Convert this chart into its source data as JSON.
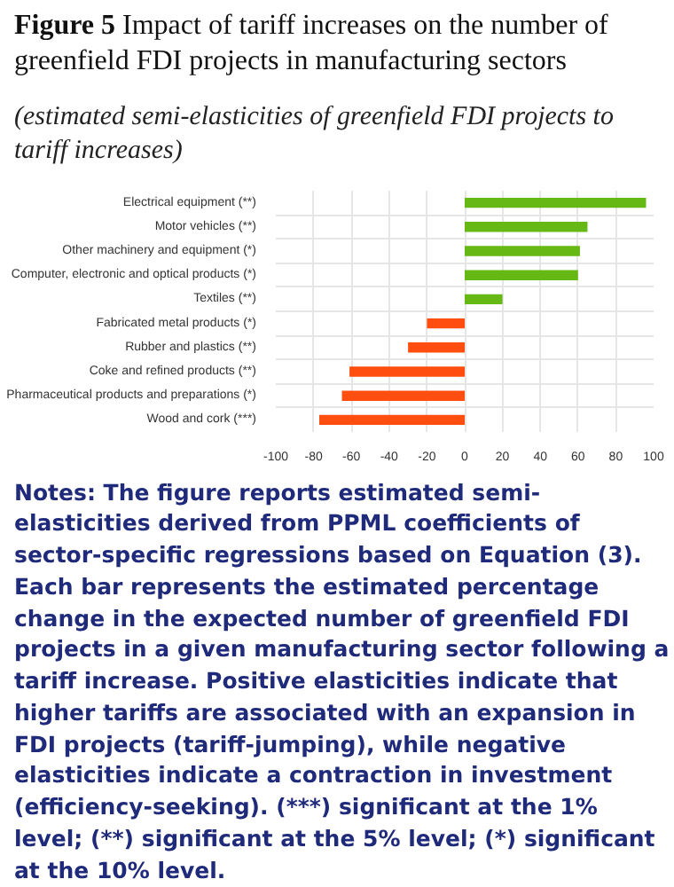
{
  "chart_data": {
    "type": "bar",
    "orientation": "horizontal",
    "title": "Figure 5 Impact of tariff increases on the number of greenfield FDI projects in manufacturing sectors",
    "subtitle": "(estimated semi-elasticities of greenfield FDI projects to tariff increases)",
    "categories": [
      "Electrical equipment (**)",
      "Motor vehicles (**)",
      "Other machinery and equipment (*)",
      "Computer, electronic and optical products (*)",
      "Textiles (**)",
      "Fabricated metal products (*)",
      "Rubber and plastics (**)",
      "Coke and refined products (**)",
      "Pharmaceutical products and preparations (*)",
      "Wood and cork (***)"
    ],
    "values": [
      96,
      65,
      61,
      60,
      20,
      -20,
      -30,
      -61,
      -65,
      -77
    ],
    "colors": [
      "#66b814",
      "#66b814",
      "#66b814",
      "#66b814",
      "#66b814",
      "#ff4e0f",
      "#ff4e0f",
      "#ff4e0f",
      "#ff4e0f",
      "#ff4e0f"
    ],
    "xlim": [
      -100,
      100
    ],
    "xticks": [
      -100,
      -80,
      -60,
      -40,
      -20,
      0,
      20,
      40,
      60,
      80,
      100
    ],
    "grid": true,
    "annotations": [
      "Notes: The figure reports estimated semi-elasticities derived from PPML coefficients of sector-specific regressions based on Equation (3). Each bar represents the estimated percentage change in the expected number of greenfield FDI projects in a given manufacturing sector following a tariff increase. Positive elasticities indicate that higher tariffs are associated with an expansion in FDI projects (tariff-jumping), while negative elasticities indicate a contraction in investment (efficiency-seeking). (***) significant at the 1% level; (**) significant at the 5% level; (*) significant at the 10% level."
    ]
  }
}
